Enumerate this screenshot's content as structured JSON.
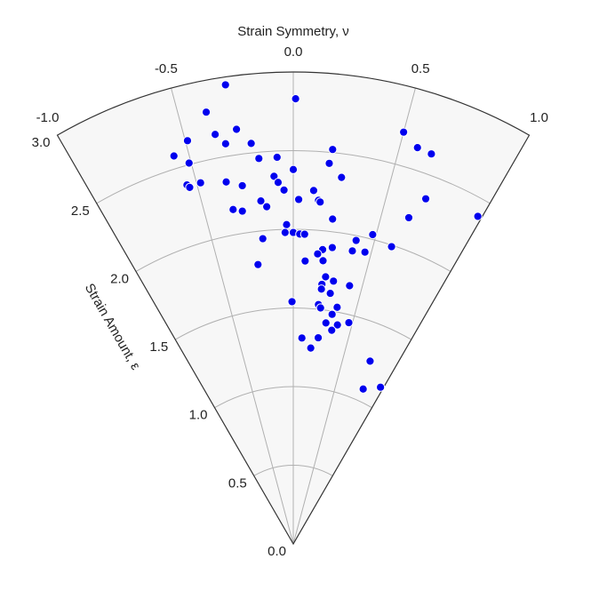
{
  "chart_data": {
    "type": "polar_scatter",
    "xlabel": "Strain Symmetry, ν",
    "ylabel": "Strain Amount, ε",
    "xlim": [
      -1,
      1
    ],
    "ylim": [
      0,
      3
    ],
    "xticks": [
      {
        "value": -1,
        "label": "-1.0"
      },
      {
        "value": -0.5,
        "label": "-0.5"
      },
      {
        "value": 0,
        "label": "0.0"
      },
      {
        "value": 0.5,
        "label": "0.5"
      },
      {
        "value": 1,
        "label": "1.0"
      }
    ],
    "yticks": [
      {
        "value": 0,
        "label": "0.0"
      },
      {
        "value": 0.5,
        "label": "0.5"
      },
      {
        "value": 1,
        "label": "1.0"
      },
      {
        "value": 1.5,
        "label": "1.5"
      },
      {
        "value": 2,
        "label": "2.0"
      },
      {
        "value": 2.5,
        "label": "2.5"
      },
      {
        "value": 3,
        "label": "3.0"
      }
    ],
    "grid": true,
    "color": "#0000ee",
    "x": [
      -0.28,
      0.01,
      -0.38,
      -0.26,
      -0.36,
      -0.49,
      -0.32,
      -0.2,
      -0.57,
      -0.51,
      -0.17,
      -0.08,
      0.19,
      0.18,
      0.5,
      0.58,
      0.65,
      -0.55,
      -0.54,
      -0.48,
      -0.35,
      -0.27,
      -0.1,
      -0.08,
      -0.05,
      0.0,
      0.11,
      0.14,
      0.15,
      0.25,
      0.03,
      -0.18,
      -0.15,
      -0.34,
      -0.29,
      0.7,
      0.98,
      0.65,
      0.23,
      -0.04,
      -0.05,
      0.0,
      0.04,
      0.07,
      -0.19,
      0.48,
      0.39,
      0.61,
      0.25,
      0.19,
      0.38,
      0.46,
      0.16,
      0.08,
      0.2,
      -0.24,
      0.23,
      0.29,
      0.41,
      0.21,
      0.21,
      0.28,
      -0.01,
      0.2,
      0.22,
      0.35,
      0.32,
      0.28,
      0.38,
      0.47,
      0.34,
      0.08,
      0.23,
      0.17,
      0.76,
      0.97,
      0.81
    ],
    "y": [
      2.95,
      2.83,
      2.8,
      2.66,
      2.65,
      2.65,
      2.58,
      2.56,
      2.58,
      2.51,
      2.46,
      2.46,
      2.52,
      2.43,
      2.71,
      2.64,
      2.63,
      2.38,
      2.36,
      2.37,
      2.34,
      2.3,
      2.34,
      2.3,
      2.25,
      2.38,
      2.25,
      2.19,
      2.18,
      2.35,
      2.19,
      2.19,
      2.15,
      2.16,
      2.14,
      2.35,
      2.39,
      2.2,
      2.08,
      2.03,
      1.98,
      1.98,
      1.97,
      1.97,
      1.95,
      2.03,
      1.97,
      1.99,
      1.9,
      1.88,
      1.9,
      1.91,
      1.85,
      1.8,
      1.81,
      1.79,
      1.71,
      1.69,
      1.68,
      1.66,
      1.63,
      1.61,
      1.54,
      1.53,
      1.51,
      1.53,
      1.48,
      1.42,
      1.42,
      1.45,
      1.38,
      1.31,
      1.32,
      1.25,
      1.26,
      1.14,
      1.08
    ]
  }
}
